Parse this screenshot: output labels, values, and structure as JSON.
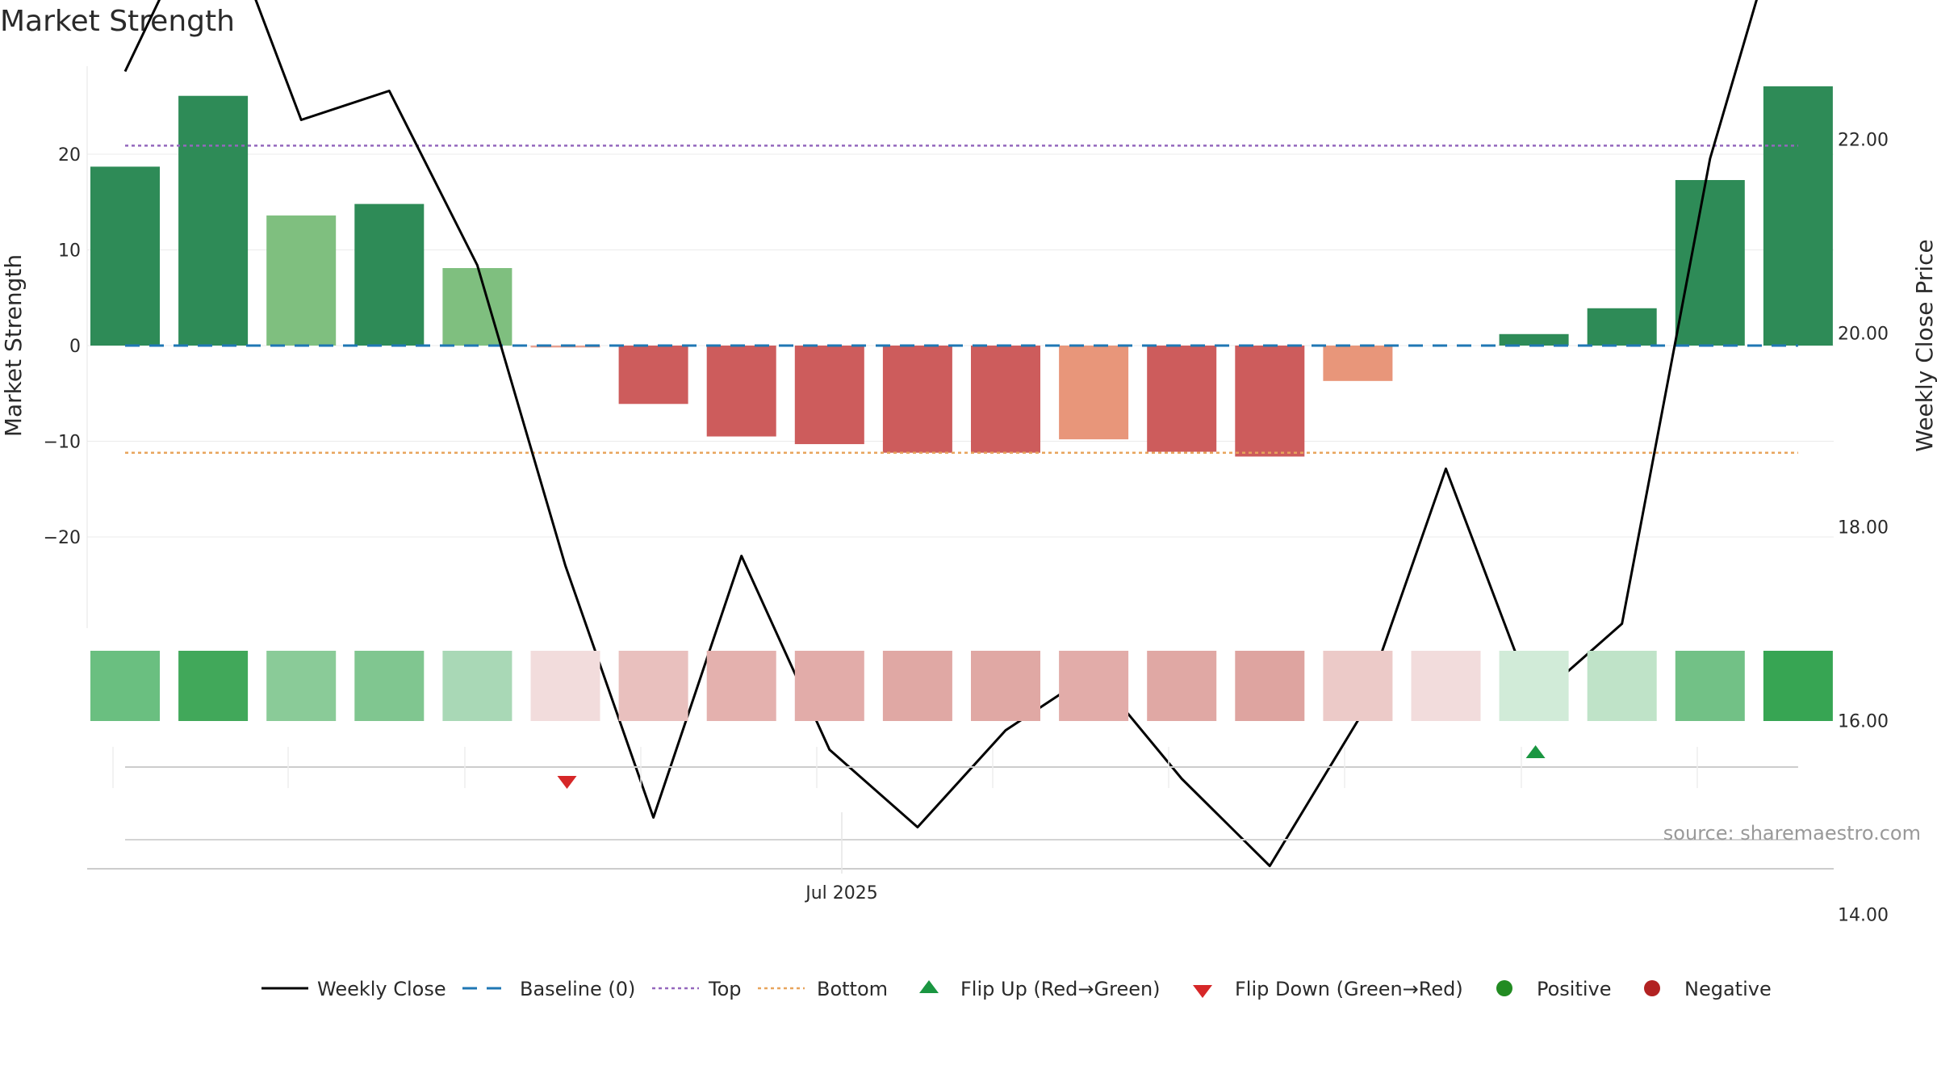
{
  "chart_data": {
    "type": "bar",
    "title": "Market Strength",
    "ylabel": "Market Strength",
    "y2label": "Weekly Close Price",
    "ylim": [
      -29,
      29
    ],
    "y2lim": [
      13.4,
      26.0
    ],
    "yticks": [
      20,
      10,
      0,
      -10,
      -20
    ],
    "yticklabels": [
      "20",
      "10",
      "0",
      "−10",
      "−20"
    ],
    "y2ticks": [
      24,
      22,
      20,
      18,
      16,
      14
    ],
    "y2ticklabels": [
      "24.00",
      "22.00",
      "20.00",
      "18.00",
      "16.00",
      "14.00"
    ],
    "x_tick_label": "Jul 2025",
    "source": "source: sharemaestro.com",
    "grid": true,
    "legend_position": "bottom",
    "top_level": 20.9,
    "bottom_level": -11.2,
    "baseline": 0,
    "strength": [
      18.7,
      26.1,
      13.6,
      14.8,
      8.1,
      -0.2,
      -6.1,
      -9.5,
      -10.3,
      -11.2,
      -11.2,
      -9.8,
      -11.1,
      -11.6,
      -3.7,
      0,
      1.2,
      3.9,
      17.3,
      27.1
    ],
    "weekly_close": [
      22.7,
      24.6,
      22.2,
      22.5,
      20.7,
      17.6,
      15.0,
      17.7,
      15.7,
      14.9,
      15.9,
      16.5,
      15.4,
      14.5,
      16.0,
      18.6,
      16.2,
      17.0,
      21.8,
      24.9
    ],
    "bar_colors": [
      "#2e8b57",
      "#2e8b57",
      "#7fbf7f",
      "#2e8b57",
      "#7fbf7f",
      "#e8a090",
      "#cd5c5c",
      "#cd5c5c",
      "#cd5c5c",
      "#cd5c5c",
      "#cd5c5c",
      "#e8967a",
      "#cd5c5c",
      "#cd5c5c",
      "#e8967a",
      "#ffffff",
      "#2e8b57",
      "#2e8b57",
      "#2e8b57",
      "#2e8b57"
    ],
    "heat_colors": [
      "#6abf80",
      "#41a85a",
      "#8acb98",
      "#80c690",
      "#a9d8b6",
      "#f2dcdc",
      "#e9c0be",
      "#e4b1ae",
      "#e2aca9",
      "#e0a8a4",
      "#e0a8a4",
      "#e2aca9",
      "#e0a8a4",
      "#dea4a0",
      "#eccac8",
      "#f2dcdc",
      "#d1ebd8",
      "#bfe3c8",
      "#72c186",
      "#37a553"
    ],
    "flip_down_index": 5,
    "flip_up_index": 16,
    "colors": {
      "close_line": "#000000",
      "baseline": "#1f77b4",
      "top": "#9467bd",
      "bottom": "#e8a45c",
      "flip_up": "#1a9641",
      "flip_down": "#d62728",
      "positive": "#228b22",
      "negative": "#b22222"
    },
    "legend": [
      {
        "label": "Weekly Close",
        "kind": "line",
        "color": "#000000"
      },
      {
        "label": "Baseline (0)",
        "kind": "dash",
        "color": "#1f77b4"
      },
      {
        "label": "Top",
        "kind": "dot",
        "color": "#9467bd"
      },
      {
        "label": "Bottom",
        "kind": "dot",
        "color": "#e8a45c"
      },
      {
        "label": "Flip Up (Red→Green)",
        "kind": "tri-up",
        "color": "#1a9641"
      },
      {
        "label": "Flip Down (Green→Red)",
        "kind": "tri-down",
        "color": "#d62728"
      },
      {
        "label": "Positive",
        "kind": "circle",
        "color": "#228b22"
      },
      {
        "label": "Negative",
        "kind": "circle",
        "color": "#b22222"
      }
    ]
  }
}
